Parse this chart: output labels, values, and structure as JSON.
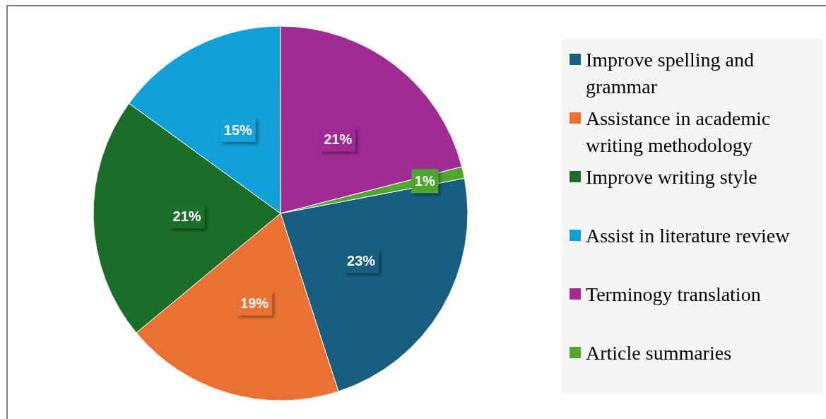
{
  "chart_data": {
    "type": "pie",
    "categories": [
      "Improve spelling and grammar",
      "Assistance in academic writing methodology",
      "Improve writing style",
      "Assist in literature review",
      "Terminogy translation",
      "Article summaries"
    ],
    "values": [
      23,
      19,
      21,
      15,
      21,
      1
    ],
    "colors": [
      "#175e81",
      "#ea7133",
      "#1b6e2a",
      "#12a0d8",
      "#a02b93",
      "#4ea72e"
    ],
    "value_labels": [
      "23%",
      "19%",
      "21%",
      "15%",
      "21%",
      "1%"
    ],
    "legend": "right"
  }
}
